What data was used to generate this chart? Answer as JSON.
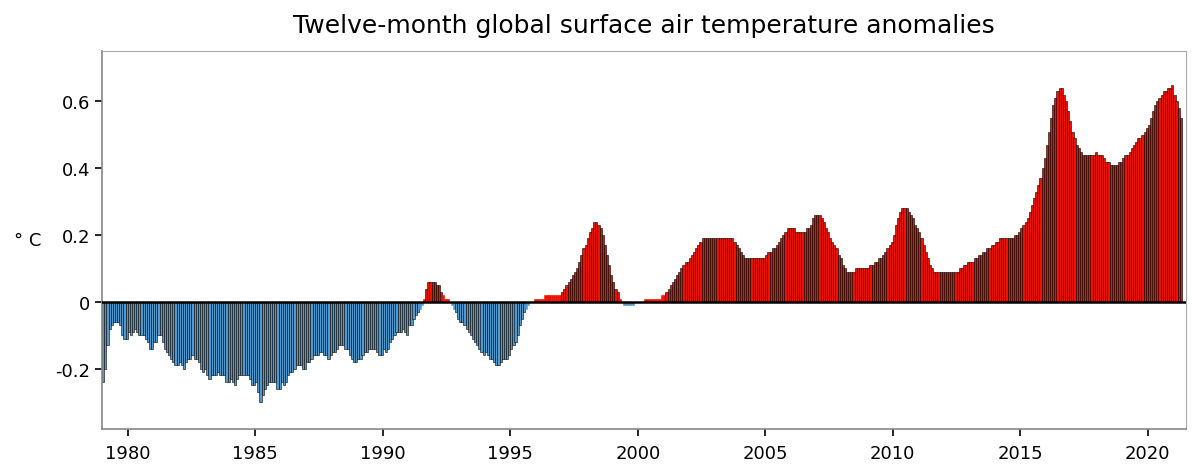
{
  "title": "Twelve-month global surface air temperature anomalies",
  "ylabel": "° C",
  "xlim": [
    1979.0,
    2021.5
  ],
  "ylim": [
    -0.38,
    0.75
  ],
  "yticks": [
    -0.2,
    0.0,
    0.2,
    0.4,
    0.6
  ],
  "xticks": [
    1980,
    1985,
    1990,
    1995,
    2000,
    2005,
    2010,
    2015,
    2020
  ],
  "positive_color": "#EE1100",
  "negative_color": "#5599CC",
  "background_color": "#FFFFFF",
  "title_fontsize": 18,
  "ylabel_fontsize": 13,
  "monthly_anomalies": [
    -0.24,
    -0.2,
    -0.13,
    -0.08,
    -0.07,
    -0.06,
    -0.06,
    -0.06,
    -0.07,
    -0.1,
    -0.11,
    -0.11,
    -0.09,
    -0.1,
    -0.09,
    -0.08,
    -0.09,
    -0.1,
    -0.1,
    -0.1,
    -0.11,
    -0.12,
    -0.14,
    -0.14,
    -0.12,
    -0.12,
    -0.1,
    -0.1,
    -0.12,
    -0.14,
    -0.15,
    -0.16,
    -0.17,
    -0.18,
    -0.19,
    -0.19,
    -0.18,
    -0.19,
    -0.2,
    -0.18,
    -0.17,
    -0.17,
    -0.16,
    -0.17,
    -0.17,
    -0.18,
    -0.2,
    -0.21,
    -0.2,
    -0.22,
    -0.23,
    -0.22,
    -0.22,
    -0.22,
    -0.21,
    -0.22,
    -0.22,
    -0.22,
    -0.24,
    -0.24,
    -0.23,
    -0.24,
    -0.25,
    -0.23,
    -0.22,
    -0.22,
    -0.22,
    -0.22,
    -0.22,
    -0.23,
    -0.25,
    -0.25,
    -0.24,
    -0.27,
    -0.3,
    -0.28,
    -0.26,
    -0.25,
    -0.24,
    -0.24,
    -0.24,
    -0.24,
    -0.26,
    -0.26,
    -0.24,
    -0.25,
    -0.24,
    -0.22,
    -0.21,
    -0.21,
    -0.2,
    -0.19,
    -0.19,
    -0.19,
    -0.2,
    -0.2,
    -0.18,
    -0.18,
    -0.17,
    -0.16,
    -0.16,
    -0.16,
    -0.15,
    -0.15,
    -0.16,
    -0.16,
    -0.17,
    -0.16,
    -0.15,
    -0.15,
    -0.14,
    -0.13,
    -0.13,
    -0.13,
    -0.14,
    -0.14,
    -0.16,
    -0.17,
    -0.18,
    -0.18,
    -0.17,
    -0.17,
    -0.16,
    -0.15,
    -0.15,
    -0.14,
    -0.14,
    -0.14,
    -0.14,
    -0.15,
    -0.16,
    -0.16,
    -0.14,
    -0.15,
    -0.14,
    -0.12,
    -0.11,
    -0.1,
    -0.09,
    -0.09,
    -0.09,
    -0.08,
    -0.09,
    -0.1,
    -0.07,
    -0.07,
    -0.05,
    -0.04,
    -0.03,
    -0.02,
    -0.01,
    0.01,
    0.04,
    0.06,
    0.06,
    0.06,
    0.06,
    0.05,
    0.05,
    0.03,
    0.02,
    0.01,
    0.01,
    0.0,
    -0.01,
    -0.02,
    -0.03,
    -0.05,
    -0.06,
    -0.06,
    -0.07,
    -0.08,
    -0.09,
    -0.1,
    -0.11,
    -0.12,
    -0.13,
    -0.14,
    -0.15,
    -0.16,
    -0.15,
    -0.16,
    -0.17,
    -0.17,
    -0.18,
    -0.19,
    -0.19,
    -0.18,
    -0.17,
    -0.17,
    -0.17,
    -0.16,
    -0.14,
    -0.13,
    -0.12,
    -0.1,
    -0.07,
    -0.05,
    -0.03,
    -0.02,
    -0.01,
    0.0,
    0.0,
    0.01,
    0.01,
    0.01,
    0.01,
    0.01,
    0.02,
    0.02,
    0.02,
    0.02,
    0.02,
    0.02,
    0.02,
    0.02,
    0.03,
    0.04,
    0.05,
    0.06,
    0.07,
    0.08,
    0.09,
    0.1,
    0.12,
    0.14,
    0.16,
    0.17,
    0.19,
    0.21,
    0.22,
    0.24,
    0.24,
    0.23,
    0.22,
    0.2,
    0.17,
    0.14,
    0.11,
    0.08,
    0.06,
    0.04,
    0.03,
    0.01,
    0.0,
    -0.01,
    -0.01,
    -0.01,
    -0.01,
    -0.01,
    0.0,
    0.0,
    0.0,
    0.0,
    0.0,
    0.01,
    0.01,
    0.01,
    0.01,
    0.01,
    0.01,
    0.01,
    0.01,
    0.02,
    0.02,
    0.03,
    0.04,
    0.05,
    0.06,
    0.07,
    0.08,
    0.09,
    0.1,
    0.11,
    0.12,
    0.12,
    0.13,
    0.14,
    0.15,
    0.16,
    0.17,
    0.18,
    0.19,
    0.19,
    0.19,
    0.19,
    0.19,
    0.19,
    0.19,
    0.19,
    0.19,
    0.19,
    0.19,
    0.19,
    0.19,
    0.19,
    0.19,
    0.18,
    0.17,
    0.16,
    0.15,
    0.14,
    0.13,
    0.13,
    0.13,
    0.13,
    0.13,
    0.13,
    0.13,
    0.13,
    0.13,
    0.13,
    0.14,
    0.15,
    0.15,
    0.16,
    0.16,
    0.17,
    0.18,
    0.19,
    0.2,
    0.21,
    0.22,
    0.22,
    0.22,
    0.22,
    0.21,
    0.21,
    0.21,
    0.21,
    0.21,
    0.22,
    0.22,
    0.23,
    0.25,
    0.26,
    0.26,
    0.26,
    0.25,
    0.24,
    0.22,
    0.21,
    0.19,
    0.18,
    0.17,
    0.16,
    0.14,
    0.13,
    0.11,
    0.1,
    0.09,
    0.09,
    0.09,
    0.09,
    0.1,
    0.1,
    0.1,
    0.1,
    0.1,
    0.1,
    0.1,
    0.11,
    0.11,
    0.12,
    0.12,
    0.13,
    0.13,
    0.14,
    0.15,
    0.16,
    0.17,
    0.18,
    0.2,
    0.23,
    0.25,
    0.27,
    0.28,
    0.28,
    0.28,
    0.27,
    0.26,
    0.25,
    0.23,
    0.22,
    0.21,
    0.19,
    0.17,
    0.15,
    0.13,
    0.11,
    0.1,
    0.09,
    0.09,
    0.09,
    0.09,
    0.09,
    0.09,
    0.09,
    0.09,
    0.09,
    0.09,
    0.09,
    0.09,
    0.1,
    0.1,
    0.11,
    0.11,
    0.12,
    0.12,
    0.12,
    0.13,
    0.13,
    0.14,
    0.14,
    0.15,
    0.15,
    0.16,
    0.16,
    0.17,
    0.17,
    0.18,
    0.18,
    0.19,
    0.19,
    0.19,
    0.19,
    0.19,
    0.19,
    0.19,
    0.2,
    0.2,
    0.21,
    0.22,
    0.23,
    0.24,
    0.25,
    0.27,
    0.29,
    0.31,
    0.33,
    0.35,
    0.37,
    0.4,
    0.43,
    0.47,
    0.51,
    0.55,
    0.59,
    0.61,
    0.63,
    0.64,
    0.64,
    0.62,
    0.6,
    0.57,
    0.54,
    0.51,
    0.49,
    0.47,
    0.46,
    0.45,
    0.44,
    0.44,
    0.44,
    0.44,
    0.44,
    0.44,
    0.45,
    0.44,
    0.44,
    0.44,
    0.43,
    0.42,
    0.42,
    0.41,
    0.41,
    0.41,
    0.41,
    0.42,
    0.42,
    0.43,
    0.44,
    0.44,
    0.45,
    0.46,
    0.47,
    0.48,
    0.49,
    0.49,
    0.5,
    0.51,
    0.52,
    0.53,
    0.55,
    0.57,
    0.59,
    0.6,
    0.61,
    0.62,
    0.63,
    0.63,
    0.64,
    0.64,
    0.65,
    0.62,
    0.6,
    0.58,
    0.55
  ],
  "start_year": 1979,
  "start_month": 1
}
